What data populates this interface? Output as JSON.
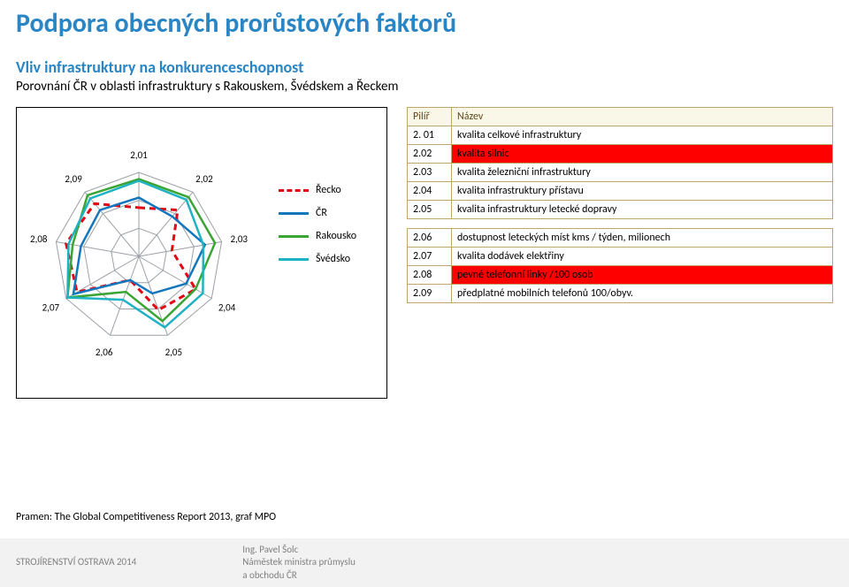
{
  "title": {
    "text": "Podpora obecných prorůstových faktorů",
    "color": "#2a85c5"
  },
  "subtitle": {
    "text": "Vliv infrastruktury na konkurenceschopnost",
    "color": "#2a85c5"
  },
  "subtext": "Porovnání ČR v oblasti infrastruktury s Rakouskem, Švédskem a Řeckem",
  "radar": {
    "axes": [
      "2,01",
      "2,02",
      "2,03",
      "2,04",
      "2,05",
      "2,06",
      "2,07",
      "2,08",
      "2,09"
    ],
    "label_fontsize": 11,
    "grid_color": "#9ca0a6",
    "ring_count": 3,
    "series": [
      {
        "name": "Řecko",
        "color": "#e30613",
        "dash": true,
        "width": 3,
        "values": [
          0.58,
          0.72,
          0.4,
          0.78,
          0.68,
          0.3,
          0.85,
          0.88,
          0.82
        ]
      },
      {
        "name": "ČR",
        "color": "#1477bd",
        "dash": false,
        "width": 2.5,
        "values": [
          0.7,
          0.62,
          0.8,
          0.65,
          0.47,
          0.3,
          0.9,
          0.7,
          0.72
        ]
      },
      {
        "name": "Rakousko",
        "color": "#3aa535",
        "dash": false,
        "width": 2.5,
        "values": [
          0.92,
          0.92,
          0.92,
          0.78,
          0.82,
          0.45,
          0.98,
          0.8,
          0.95
        ]
      },
      {
        "name": "Švédsko",
        "color": "#1eb2c4",
        "dash": false,
        "width": 2.5,
        "values": [
          0.9,
          0.88,
          0.78,
          0.88,
          0.9,
          0.55,
          0.98,
          0.85,
          0.9
        ]
      }
    ]
  },
  "table_header": {
    "col1": "Pilíř",
    "col2": "Název"
  },
  "table1": {
    "rows": [
      {
        "code": "2. 01",
        "name": "kvalita celkové infrastruktury",
        "hl": false
      },
      {
        "code": "2.02",
        "name": "kvalita silnic",
        "hl": true
      },
      {
        "code": "2.03",
        "name": "kvalita železniční infrastruktury",
        "hl": false
      },
      {
        "code": "2.04",
        "name": "kvalita infrastruktury přístavu",
        "hl": false
      },
      {
        "code": "2.05",
        "name": "kvalita infrastruktury letecké dopravy",
        "hl": false
      }
    ]
  },
  "table2": {
    "rows": [
      {
        "code": "2.06",
        "name": "dostupnost leteckých míst kms / týden, milionech",
        "hl": false
      },
      {
        "code": "2.07",
        "name": "kvalita dodávek elektřiny",
        "hl": false
      },
      {
        "code": "2.08",
        "name": "pevné telefonní linky /100 osob",
        "hl": true
      },
      {
        "code": "2.09",
        "name": "předplatné mobilních telefonů 100/obyv.",
        "hl": false
      }
    ]
  },
  "source": "Pramen: The Global Competitiveness Report 2013, graf MPO",
  "footer": {
    "left": "STROJÍRENSTVÍ OSTRAVA 2014",
    "right_lines": [
      "Ing. Pavel Šolc",
      "Náměstek ministra průmyslu",
      "a obchodu ČR"
    ]
  }
}
